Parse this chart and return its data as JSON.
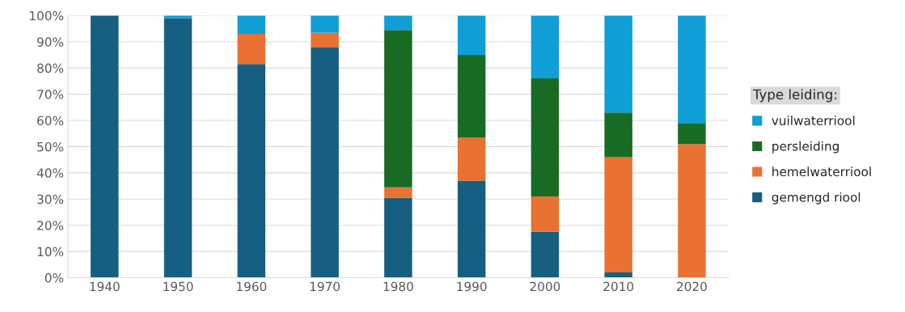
{
  "chart_data": {
    "type": "bar",
    "stacked": true,
    "legend_title": "Type leiding:",
    "legend": "right",
    "grid": "y",
    "categories": [
      "1940",
      "1950",
      "1960",
      "1970",
      "1980",
      "1990",
      "2000",
      "2010",
      "2020"
    ],
    "series": [
      {
        "name": "gemengd riool",
        "color": "#175f80",
        "values": [
          100,
          99,
          81.5,
          88,
          30.5,
          37,
          17.5,
          2,
          0
        ]
      },
      {
        "name": "hemelwaterriool",
        "color": "#e97132",
        "values": [
          0,
          0,
          11.5,
          5.5,
          4,
          16.5,
          13.5,
          44,
          51
        ]
      },
      {
        "name": "persleiding",
        "color": "#196b24",
        "values": [
          0,
          0,
          0,
          0,
          60,
          31.5,
          45,
          17,
          8
        ]
      },
      {
        "name": "vuilwaterriool",
        "color": "#0f9ed5",
        "values": [
          0,
          1,
          7,
          6.5,
          5.5,
          15,
          24,
          37,
          41
        ]
      }
    ],
    "ylim": [
      0,
      100
    ],
    "yticks": [
      {
        "value": 0,
        "label": "0%"
      },
      {
        "value": 10,
        "label": "10%"
      },
      {
        "value": 20,
        "label": "20%"
      },
      {
        "value": 30,
        "label": "30%"
      },
      {
        "value": 40,
        "label": "40%"
      },
      {
        "value": 50,
        "label": "50%"
      },
      {
        "value": 60,
        "label": "60%"
      },
      {
        "value": 70,
        "label": "70%"
      },
      {
        "value": 80,
        "label": "80%"
      },
      {
        "value": 90,
        "label": "90%"
      },
      {
        "value": 100,
        "label": "100%"
      }
    ]
  }
}
